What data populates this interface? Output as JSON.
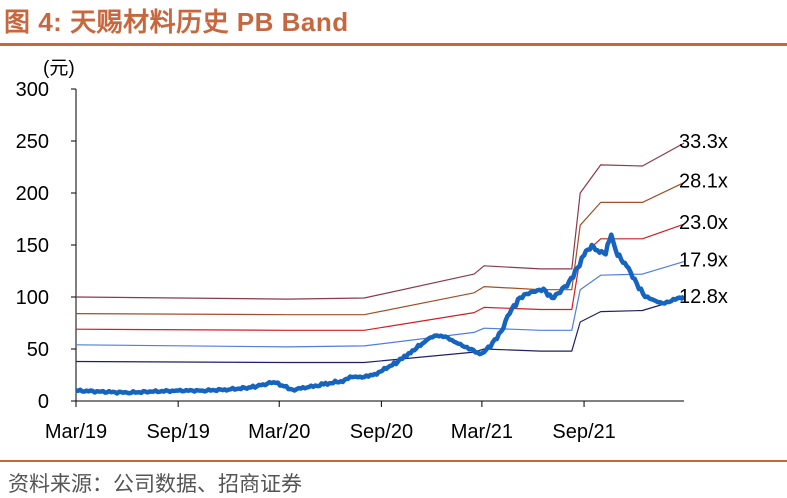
{
  "title": "图 4:  天赐材料历史 PB Band",
  "source": "资料来源：公司数据、招商证券",
  "chart_data": {
    "type": "line",
    "unit_label": "(元)",
    "xlabel": "",
    "ylabel": "",
    "ylim": [
      0,
      300
    ],
    "yticks": [
      0,
      50,
      100,
      150,
      200,
      250,
      300
    ],
    "xlim": [
      "2019-03-01",
      "2022-02-28"
    ],
    "xticks": [
      {
        "label": "Mar/19",
        "date": "2019-03-01"
      },
      {
        "label": "Sep/19",
        "date": "2019-09-01"
      },
      {
        "label": "Mar/20",
        "date": "2020-03-01"
      },
      {
        "label": "Sep/20",
        "date": "2020-09-01"
      },
      {
        "label": "Mar/21",
        "date": "2021-03-01"
      },
      {
        "label": "Sep/21",
        "date": "2021-09-01"
      }
    ],
    "grid": false,
    "series": [
      {
        "name": "12.8x",
        "color": "#1f1f6b",
        "width": 1.2,
        "label": true,
        "points": [
          [
            "2019-03-01",
            38
          ],
          [
            "2020-03-15",
            37
          ],
          [
            "2020-08-01",
            37
          ],
          [
            "2021-02-15",
            47
          ],
          [
            "2021-03-05",
            50
          ],
          [
            "2021-06-15",
            48
          ],
          [
            "2021-08-10",
            48
          ],
          [
            "2021-08-25",
            76
          ],
          [
            "2021-10-01",
            86
          ],
          [
            "2021-12-15",
            87
          ],
          [
            "2022-02-28",
            99
          ]
        ]
      },
      {
        "name": "17.9x",
        "color": "#4f7fd9",
        "width": 1.2,
        "label": true,
        "points": [
          [
            "2019-03-01",
            54
          ],
          [
            "2020-03-15",
            52
          ],
          [
            "2020-08-01",
            53
          ],
          [
            "2021-02-15",
            66
          ],
          [
            "2021-03-05",
            70
          ],
          [
            "2021-06-15",
            68
          ],
          [
            "2021-08-10",
            68
          ],
          [
            "2021-08-25",
            107
          ],
          [
            "2021-10-01",
            121
          ],
          [
            "2021-12-15",
            122
          ],
          [
            "2022-02-28",
            134
          ]
        ]
      },
      {
        "name": "23.0x",
        "color": "#d02020",
        "width": 1.2,
        "label": true,
        "points": [
          [
            "2019-03-01",
            69
          ],
          [
            "2020-03-15",
            68
          ],
          [
            "2020-08-01",
            68
          ],
          [
            "2021-02-15",
            85
          ],
          [
            "2021-03-05",
            90
          ],
          [
            "2021-06-15",
            88
          ],
          [
            "2021-08-10",
            88
          ],
          [
            "2021-08-25",
            138
          ],
          [
            "2021-10-01",
            156
          ],
          [
            "2021-12-15",
            156
          ],
          [
            "2022-02-28",
            170
          ]
        ]
      },
      {
        "name": "28.1x",
        "color": "#a05028",
        "width": 1.2,
        "label": true,
        "points": [
          [
            "2019-03-01",
            84
          ],
          [
            "2020-03-15",
            83
          ],
          [
            "2020-08-01",
            83
          ],
          [
            "2021-02-15",
            104
          ],
          [
            "2021-03-05",
            110
          ],
          [
            "2021-06-15",
            107
          ],
          [
            "2021-08-10",
            107
          ],
          [
            "2021-08-25",
            169
          ],
          [
            "2021-10-01",
            191
          ],
          [
            "2021-12-15",
            191
          ],
          [
            "2022-02-28",
            210
          ]
        ]
      },
      {
        "name": "33.3x",
        "color": "#8b3a4a",
        "width": 1.2,
        "label": true,
        "points": [
          [
            "2019-03-01",
            100
          ],
          [
            "2020-03-15",
            98
          ],
          [
            "2020-08-01",
            99
          ],
          [
            "2021-02-15",
            122
          ],
          [
            "2021-03-05",
            130
          ],
          [
            "2021-06-15",
            127
          ],
          [
            "2021-08-10",
            127
          ],
          [
            "2021-08-25",
            200
          ],
          [
            "2021-10-01",
            227
          ],
          [
            "2021-12-15",
            226
          ],
          [
            "2022-02-28",
            248
          ]
        ]
      },
      {
        "name": "",
        "color": "#1565c0",
        "width": 4.5,
        "label": false,
        "points": [
          [
            "2019-03-01",
            10
          ],
          [
            "2019-04-15",
            9
          ],
          [
            "2019-06-01",
            8
          ],
          [
            "2019-07-15",
            9
          ],
          [
            "2019-09-01",
            10
          ],
          [
            "2019-10-15",
            10
          ],
          [
            "2019-12-01",
            11
          ],
          [
            "2020-01-10",
            13
          ],
          [
            "2020-02-01",
            16
          ],
          [
            "2020-02-20",
            18
          ],
          [
            "2020-03-10",
            14
          ],
          [
            "2020-03-25",
            11
          ],
          [
            "2020-04-20",
            13
          ],
          [
            "2020-05-20",
            16
          ],
          [
            "2020-06-20",
            19
          ],
          [
            "2020-07-10",
            23
          ],
          [
            "2020-08-01",
            23
          ],
          [
            "2020-08-20",
            26
          ],
          [
            "2020-09-10",
            31
          ],
          [
            "2020-10-01",
            38
          ],
          [
            "2020-10-20",
            46
          ],
          [
            "2020-11-10",
            53
          ],
          [
            "2020-11-25",
            60
          ],
          [
            "2020-12-10",
            63
          ],
          [
            "2020-12-25",
            62
          ],
          [
            "2021-01-10",
            57
          ],
          [
            "2021-01-25",
            53
          ],
          [
            "2021-02-10",
            50
          ],
          [
            "2021-02-25",
            45
          ],
          [
            "2021-03-05",
            47
          ],
          [
            "2021-03-20",
            56
          ],
          [
            "2021-04-05",
            67
          ],
          [
            "2021-04-20",
            84
          ],
          [
            "2021-05-05",
            98
          ],
          [
            "2021-05-20",
            103
          ],
          [
            "2021-06-05",
            105
          ],
          [
            "2021-06-20",
            108
          ],
          [
            "2021-07-05",
            99
          ],
          [
            "2021-07-20",
            104
          ],
          [
            "2021-08-05",
            115
          ],
          [
            "2021-08-20",
            128
          ],
          [
            "2021-09-01",
            140
          ],
          [
            "2021-09-15",
            150
          ],
          [
            "2021-09-25",
            145
          ],
          [
            "2021-10-10",
            141
          ],
          [
            "2021-10-20",
            160
          ],
          [
            "2021-10-28",
            145
          ],
          [
            "2021-11-10",
            133
          ],
          [
            "2021-11-20",
            128
          ],
          [
            "2021-12-05",
            113
          ],
          [
            "2021-12-20",
            100
          ],
          [
            "2022-01-05",
            97
          ],
          [
            "2022-01-20",
            94
          ],
          [
            "2022-02-05",
            96
          ],
          [
            "2022-02-28",
            101
          ]
        ]
      }
    ]
  }
}
